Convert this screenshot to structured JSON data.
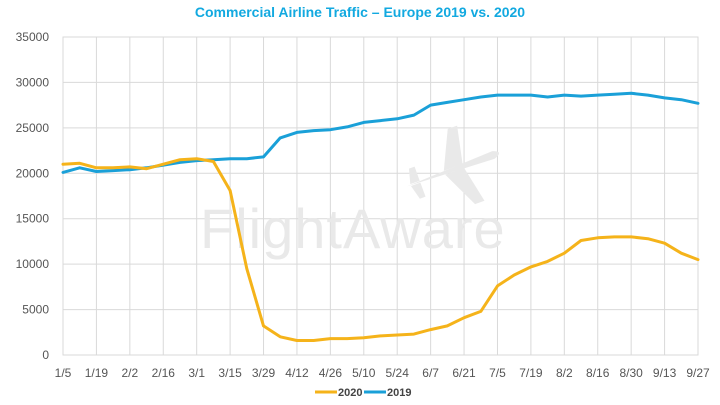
{
  "chart_data": {
    "type": "line",
    "title": "Commercial Airline Traffic – Europe 2019 vs. 2020",
    "xlabel": "",
    "ylabel": "",
    "ylim": [
      0,
      35000
    ],
    "yticks": [
      0,
      5000,
      10000,
      15000,
      20000,
      25000,
      30000,
      35000
    ],
    "x_tick_labels": [
      "1/5",
      "1/19",
      "2/2",
      "2/16",
      "3/1",
      "3/15",
      "3/29",
      "4/12",
      "4/26",
      "5/10",
      "5/24",
      "6/7",
      "6/21",
      "7/5",
      "7/19",
      "8/2",
      "8/16",
      "8/30",
      "9/13",
      "9/27"
    ],
    "grid": true,
    "legend_position": "bottom-center",
    "watermark": "FlightAware",
    "series": [
      {
        "name": "2020",
        "color": "#f5b31a",
        "values": [
          21000,
          21100,
          20600,
          20600,
          20700,
          20500,
          21000,
          21500,
          21600,
          21300,
          18100,
          9500,
          3200,
          2000,
          1600,
          1600,
          1800,
          1800,
          1900,
          2100,
          2200,
          2300,
          2800,
          3200,
          4100,
          4800,
          7600,
          8800,
          9700,
          10300,
          11200,
          12600,
          12900,
          13000,
          13000,
          12800,
          12300,
          11200,
          10500
        ],
        "labels": [
          "2020"
        ]
      },
      {
        "name": "2019",
        "color": "#1aa0d8",
        "values": [
          20100,
          20600,
          20200,
          20300,
          20400,
          20600,
          20900,
          21200,
          21400,
          21500,
          21600,
          21600,
          21800,
          23900,
          24500,
          24700,
          24800,
          25100,
          25600,
          25800,
          26000,
          26400,
          27500,
          27800,
          28100,
          28400,
          28600,
          28600,
          28600,
          28400,
          28600,
          28500,
          28600,
          28700,
          28800,
          28600,
          28300,
          28100,
          27700
        ],
        "labels": [
          "2019"
        ]
      }
    ]
  }
}
